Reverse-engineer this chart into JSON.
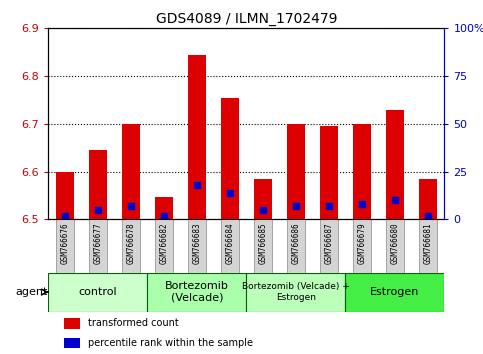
{
  "title": "GDS4089 / ILMN_1702479",
  "samples": [
    "GSM766676",
    "GSM766677",
    "GSM766678",
    "GSM766682",
    "GSM766683",
    "GSM766684",
    "GSM766685",
    "GSM766686",
    "GSM766687",
    "GSM766679",
    "GSM766680",
    "GSM766681"
  ],
  "transformed_count": [
    6.6,
    6.645,
    6.7,
    6.548,
    6.845,
    6.755,
    6.585,
    6.7,
    6.695,
    6.7,
    6.73,
    6.585
  ],
  "percentile_rank": [
    2,
    5,
    7,
    2,
    18,
    14,
    5,
    7,
    7,
    8,
    10,
    2
  ],
  "base_value": 6.5,
  "ylim": [
    6.5,
    6.9
  ],
  "yticks": [
    6.5,
    6.6,
    6.7,
    6.8,
    6.9
  ],
  "right_yticks": [
    0,
    25,
    50,
    75,
    100
  ],
  "right_ylim": [
    0,
    100
  ],
  "bar_color": "#dd0000",
  "percentile_color": "#0000cc",
  "left_tick_color": "#cc0000",
  "right_tick_color": "#0000cc",
  "groups": [
    {
      "label": "control",
      "start": 0,
      "end": 3,
      "color": "#ccffcc"
    },
    {
      "label": "Bortezomib\n(Velcade)",
      "start": 3,
      "end": 6,
      "color": "#aaffaa"
    },
    {
      "label": "Bortezomib (Velcade) +\nEstrogen",
      "start": 6,
      "end": 9,
      "color": "#bbffbb"
    },
    {
      "label": "Estrogen",
      "start": 9,
      "end": 12,
      "color": "#44ee44"
    }
  ],
  "bar_width": 0.55,
  "agent_label": "agent",
  "legend_items": [
    {
      "label": "transformed count",
      "color": "#dd0000"
    },
    {
      "label": "percentile rank within the sample",
      "color": "#0000cc"
    }
  ]
}
